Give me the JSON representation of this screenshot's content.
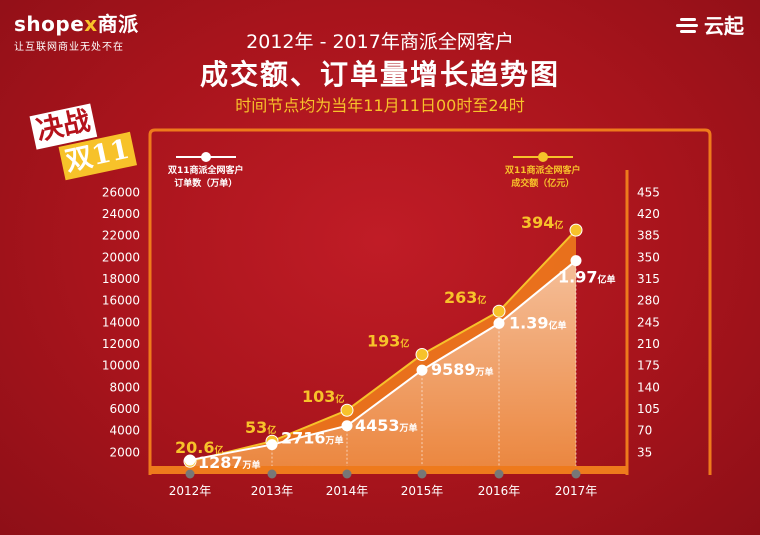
{
  "header": {
    "brand_prefix": "shope",
    "brand_x": "x",
    "brand_cn": "商派",
    "brand_tagline": "让互联网商业无处不在",
    "cloud_label": "云起",
    "title_line1": "2012年 - 2017年商派全网客户",
    "title_line2": "成交额、订单量增长趋势图",
    "title_line3": "时间节点均为当年11月11日00时至24时"
  },
  "badge": {
    "top": "决战",
    "bottom": "双11"
  },
  "colors": {
    "background": "#a8141c",
    "accent": "#f7c22a",
    "frame": "#ee7a1c",
    "orders": "#ffffff",
    "gmv": "#f7c22a"
  },
  "legend": {
    "orders_line1": "双11商派全网客户",
    "orders_line2": "订单数（万单）",
    "gmv_line1": "双11商派全网客户",
    "gmv_line2": "成交额（亿元）"
  },
  "chart_data": {
    "type": "line",
    "categories": [
      "2012年",
      "2013年",
      "2014年",
      "2015年",
      "2016年",
      "2017年"
    ],
    "y_left_ticks": [
      2000,
      4000,
      6000,
      8000,
      10000,
      12000,
      14000,
      16000,
      18000,
      20000,
      22000,
      24000,
      26000
    ],
    "y_right_ticks": [
      35,
      70,
      105,
      140,
      175,
      210,
      245,
      280,
      315,
      350,
      385,
      420,
      455
    ],
    "ylim_left": [
      0,
      27600
    ],
    "ylim_right": [
      0,
      483
    ],
    "series": [
      {
        "name": "双11商派全网客户 订单数（万单）",
        "axis": "left",
        "values": [
          1287,
          2716,
          4453,
          9589,
          13900,
          19700
        ],
        "labels": [
          {
            "num": "1287",
            "unit": "万单"
          },
          {
            "num": "2716",
            "unit": "万单"
          },
          {
            "num": "4453",
            "unit": "万单"
          },
          {
            "num": "9589",
            "unit": "万单"
          },
          {
            "num": "1.39",
            "unit": "亿单"
          },
          {
            "num": "1.97",
            "unit": "亿单"
          }
        ]
      },
      {
        "name": "双11商派全网客户 成交额（亿元）",
        "axis": "right",
        "values": [
          20.6,
          53,
          103,
          193,
          263,
          394
        ],
        "labels": [
          {
            "num": "20.6",
            "unit": "亿"
          },
          {
            "num": "53",
            "unit": "亿"
          },
          {
            "num": "103",
            "unit": "亿"
          },
          {
            "num": "193",
            "unit": "亿"
          },
          {
            "num": "263",
            "unit": "亿"
          },
          {
            "num": "394",
            "unit": "亿"
          }
        ]
      }
    ],
    "grid": false
  }
}
